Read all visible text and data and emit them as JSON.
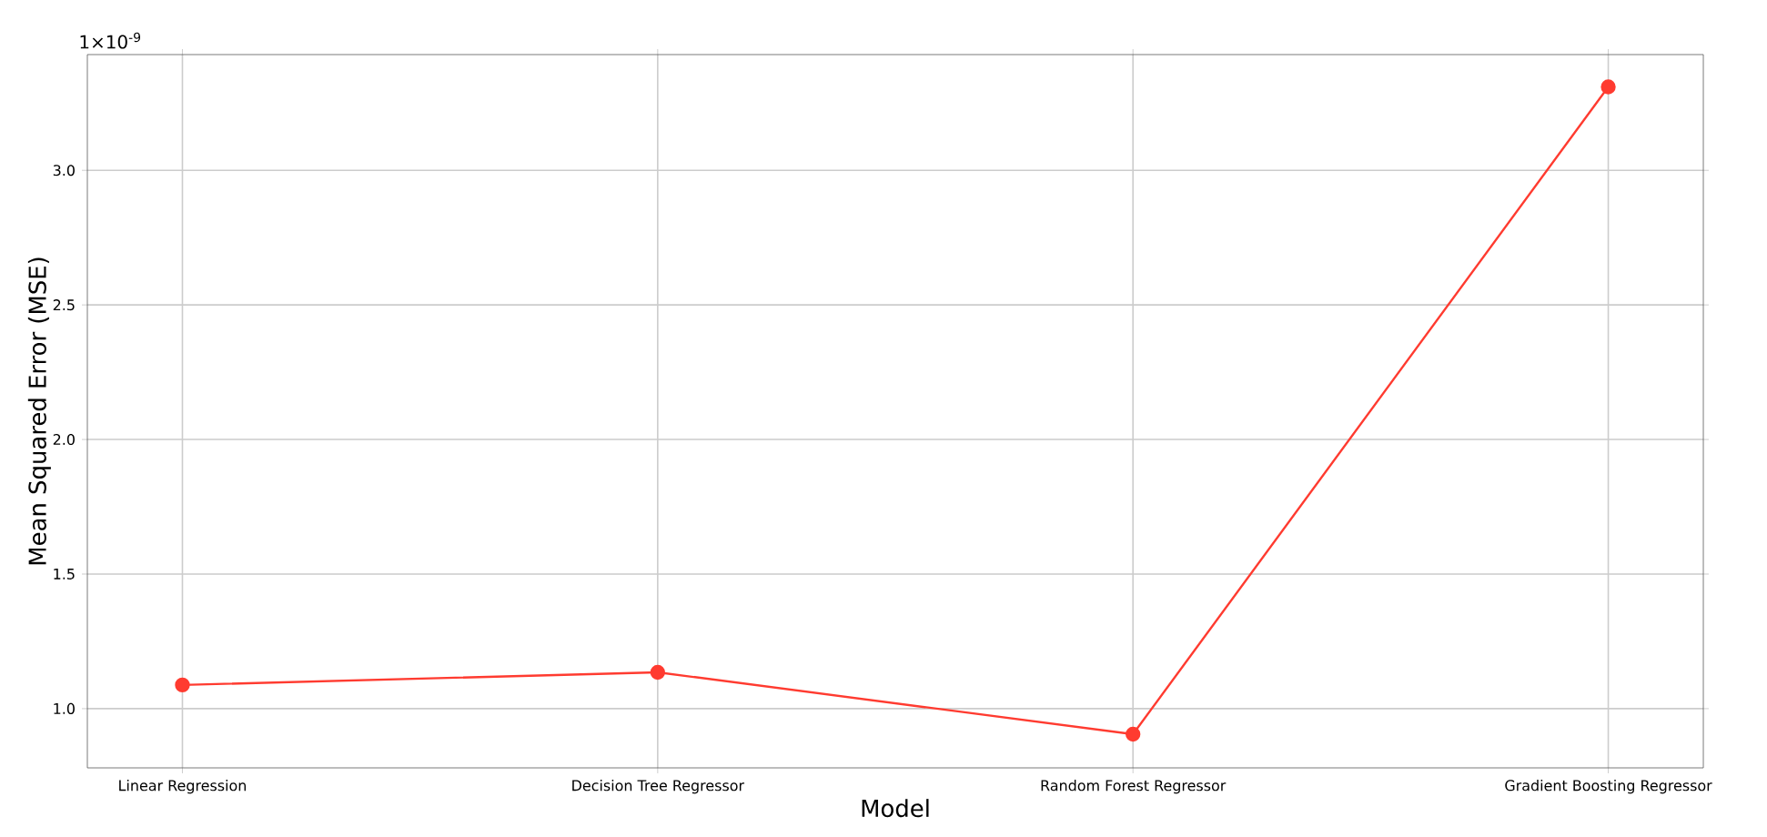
{
  "chart_data": {
    "type": "line",
    "xlabel": "Model",
    "ylabel": "Mean Squared Error (MSE)",
    "annotations": [
      "1×10$^{-9}$"
    ],
    "categories": [
      "Linear Regression",
      "Decision Tree Regressor",
      "Random Forest Regressor",
      "Gradient Boosting Regressor"
    ],
    "series": [
      {
        "color": "#ff3b30",
        "values": [
          1.088,
          1.135,
          0.905,
          3.31
        ]
      }
    ],
    "ylim": [
      0.78,
      3.43
    ],
    "yticks": [
      {
        "value": 1.0,
        "label": "1.0"
      },
      {
        "value": 1.5,
        "label": "1.5"
      },
      {
        "value": 2.0,
        "label": "2.0"
      },
      {
        "value": 2.5,
        "label": "2.5"
      },
      {
        "value": 3.0,
        "label": "3.0"
      }
    ],
    "grid": true,
    "marker": "circle",
    "line_style": "solid"
  }
}
